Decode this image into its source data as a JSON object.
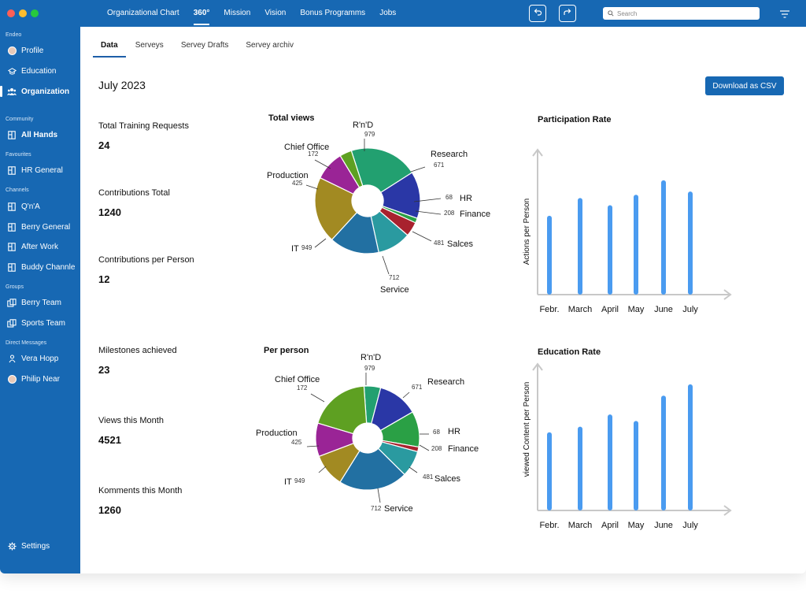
{
  "colors": {
    "sidebar_bg": "#1768b3",
    "accent": "#1768b3",
    "bar": "#4a9bf0",
    "traffic": [
      "#ff5f56",
      "#ffbd2e",
      "#27c93f"
    ]
  },
  "sidebar": {
    "sections": [
      {
        "title": "Endeo",
        "items": [
          {
            "label": "Profile",
            "icon": "avatar-icon"
          },
          {
            "label": "Education",
            "icon": "education-icon"
          },
          {
            "label": "Organization",
            "icon": "people-icon",
            "active": true
          }
        ]
      },
      {
        "title": "Community",
        "items": [
          {
            "label": "All Hands",
            "icon": "channel-icon",
            "bold": true
          }
        ]
      },
      {
        "title": "Favourites",
        "items": [
          {
            "label": "HR General",
            "icon": "channel-icon"
          }
        ]
      },
      {
        "title": "Channels",
        "items": [
          {
            "label": "Q'n'A",
            "icon": "channel-icon"
          },
          {
            "label": "Berry General",
            "icon": "channel-icon"
          },
          {
            "label": "After Work",
            "icon": "channel-icon"
          },
          {
            "label": "Buddy Channle",
            "icon": "channel-icon"
          }
        ]
      },
      {
        "title": "Groups",
        "items": [
          {
            "label": "Berry Team",
            "icon": "group-icon"
          },
          {
            "label": "Sports Team",
            "icon": "group-icon"
          }
        ]
      },
      {
        "title": "Direct Messages",
        "items": [
          {
            "label": "Vera Hopp",
            "icon": "person-icon"
          },
          {
            "label": "Philip Near",
            "icon": "avatar-icon"
          }
        ]
      }
    ],
    "settings_label": "Settings"
  },
  "topnav": {
    "items": [
      "Organizational Chart",
      "360°",
      "Mission",
      "Vision",
      "Bonus Programms",
      "Jobs"
    ],
    "active_index": 1,
    "search_placeholder": "Search"
  },
  "subtabs": {
    "items": [
      "Data",
      "Serveys",
      "Servey Drafts",
      "Servey archiv"
    ],
    "active_index": 0
  },
  "page": {
    "title": "July 2023",
    "download_label": "Download as CSV"
  },
  "stats": [
    {
      "label": "Total Training Requests",
      "value": "24"
    },
    {
      "label": "Contributions Total",
      "value": "1240"
    },
    {
      "label": "Contributions per Person",
      "value": "12"
    },
    {
      "label": "Milestones achieved",
      "value": "23"
    },
    {
      "label": "Views this Month",
      "value": "4521"
    },
    {
      "label": "Komments this Month",
      "value": "1260"
    }
  ],
  "chart_data": [
    {
      "type": "pie",
      "title": "Total views",
      "categories": [
        "R'n'D",
        "Research",
        "HR",
        "Finance",
        "Salces",
        "Service",
        "IT",
        "Production",
        "Chief Office"
      ],
      "values": [
        979,
        671,
        68,
        208,
        481,
        712,
        949,
        425,
        172
      ],
      "value_labels": [
        "979",
        "671",
        "68",
        "208",
        "481",
        "712",
        "949",
        "425",
        "172"
      ],
      "colors": [
        "#22a070",
        "#2a37a6",
        "#2aa045",
        "#a8222e",
        "#2a9aa0",
        "#2270a2",
        "#a28a22",
        "#9a2496",
        "#5ea022"
      ]
    },
    {
      "type": "pie",
      "title": "Per person",
      "categories": [
        "R'n'D",
        "Research",
        "HR",
        "Finance",
        "Salces",
        "Service",
        "IT",
        "Production",
        "Chief Office"
      ],
      "values": [
        979,
        671,
        68,
        208,
        481,
        712,
        949,
        425,
        172
      ],
      "value_labels": [
        "979",
        "671",
        "68",
        "208",
        "481",
        "712",
        "949",
        "425",
        "172"
      ],
      "slice_values": [
        70,
        170,
        150,
        20,
        110,
        290,
        140,
        140,
        260
      ],
      "colors": [
        "#22a070",
        "#2a37a6",
        "#2aa045",
        "#a8222e",
        "#2a9aa0",
        "#2270a2",
        "#a28a22",
        "#9a2496",
        "#5ea022"
      ]
    },
    {
      "type": "bar",
      "title": "Participation Rate",
      "ylabel": "Actions per Person",
      "categories": [
        "Febr.",
        "March",
        "April",
        "May",
        "June",
        "July"
      ],
      "values": [
        98,
        120,
        111,
        124,
        142,
        128
      ],
      "ylim": [
        0,
        180
      ]
    },
    {
      "type": "bar",
      "title": "Education Rate",
      "ylabel": "viewed Content  per Person",
      "categories": [
        "Febr.",
        "March",
        "April",
        "May",
        "June",
        "July"
      ],
      "values": [
        96,
        103,
        118,
        110,
        141,
        155
      ],
      "ylim": [
        0,
        180
      ]
    }
  ]
}
